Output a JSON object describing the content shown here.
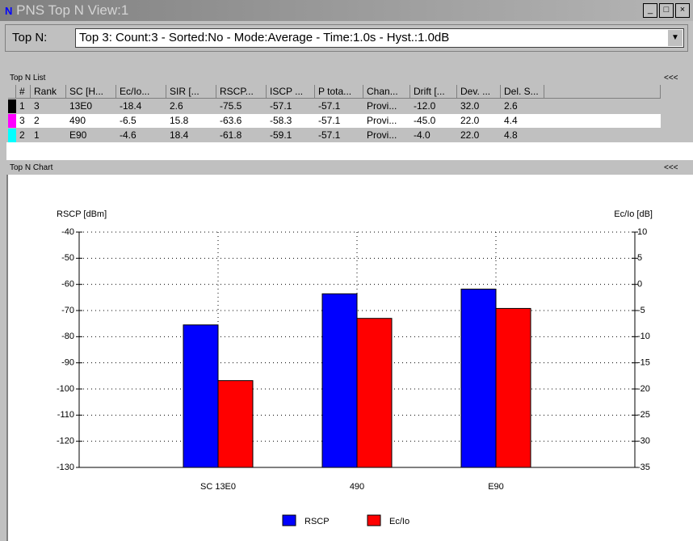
{
  "window": {
    "title": "PNS Top N View:1"
  },
  "topn": {
    "label": "Top N:",
    "value": "Top 3: Count:3 - Sorted:No - Mode:Average - Time:1.0s - Hyst.:1.0dB"
  },
  "list": {
    "title": "Top N List",
    "collapse": "<<<",
    "columns": [
      "#",
      "Rank",
      "SC [H...",
      "Ec/Io...",
      "SIR [...",
      "RSCP...",
      "ISCP ...",
      "P tota...",
      "Chan...",
      "Drift [...",
      "Dev. ...",
      "Del. S..."
    ],
    "rows": [
      [
        "1",
        "3",
        "13E0",
        "-18.4",
        "2.6",
        "-75.5",
        "-57.1",
        "-57.1",
        "Provi...",
        "-12.0",
        "32.0",
        "2.6"
      ],
      [
        "3",
        "2",
        "490",
        "-6.5",
        "15.8",
        "-63.6",
        "-58.3",
        "-57.1",
        "Provi...",
        "-45.0",
        "22.0",
        "4.4"
      ],
      [
        "2",
        "1",
        "E90",
        "-4.6",
        "18.4",
        "-61.8",
        "-59.1",
        "-57.1",
        "Provi...",
        "-4.0",
        "22.0",
        "4.8"
      ]
    ],
    "row_colors": [
      "#000000",
      "#ff00ff",
      "#00ffff"
    ]
  },
  "chart_panel": {
    "title": "Top N Chart",
    "collapse": "<<<"
  },
  "chart_data": {
    "type": "bar",
    "ylabel": "RSCP [dBm]",
    "y2label": "Ec/Io [dB]",
    "categories": [
      "SC 13E0",
      "490",
      "E90"
    ],
    "series": [
      {
        "name": "RSCP",
        "color": "#0000ff",
        "values": [
          -75.5,
          -63.6,
          -61.8
        ]
      },
      {
        "name": "Ec/Io",
        "color": "#ff0000",
        "axis": "y2",
        "values": [
          -18.4,
          -6.5,
          -4.6
        ]
      }
    ],
    "ylim": [
      -130,
      -40
    ],
    "yticks": [
      -40,
      -50,
      -60,
      -70,
      -80,
      -90,
      -100,
      -110,
      -120,
      -130
    ],
    "y2lim": [
      -35,
      10
    ],
    "y2ticks": [
      10,
      5,
      0,
      -5,
      -10,
      -15,
      -20,
      -25,
      -30,
      -35
    ],
    "grid": true
  }
}
